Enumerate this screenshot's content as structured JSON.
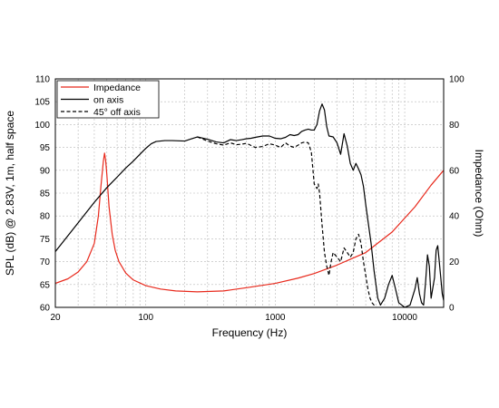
{
  "chart_data": {
    "type": "line",
    "x_scale": "log",
    "xlabel": "Frequency (Hz)",
    "ylabel_left": "SPL (dB) @ 2.83V, 1m, half space",
    "ylabel_right": "Impedance (Ohm)",
    "xlim": [
      20,
      20000
    ],
    "ylim_left": [
      60,
      110
    ],
    "ylim_right": [
      0,
      100
    ],
    "x_ticks": [
      20,
      100,
      1000,
      10000
    ],
    "x_tick_labels": [
      "20",
      "100",
      "1000",
      "10000"
    ],
    "y_left_ticks": [
      60,
      65,
      70,
      75,
      80,
      85,
      90,
      95,
      100,
      105,
      110
    ],
    "y_left_tick_labels": [
      "60",
      "65",
      "70",
      "75",
      "80",
      "85",
      "90",
      "95",
      "100",
      "105",
      "110"
    ],
    "y_right_ticks": [
      0,
      20,
      40,
      60,
      80,
      100
    ],
    "y_right_tick_labels": [
      "0",
      "20",
      "40",
      "60",
      "80",
      "100"
    ],
    "grid": true,
    "legend_position": "top-left",
    "series": [
      {
        "name": "Impedance",
        "axis": "right",
        "color": "#e8291c",
        "style": "solid",
        "x": [
          20,
          25,
          30,
          35,
          40,
          43,
          45,
          47,
          48,
          49,
          50,
          52,
          55,
          58,
          62,
          70,
          80,
          100,
          130,
          170,
          250,
          400,
          600,
          1000,
          1500,
          2000,
          3000,
          5000,
          8000,
          12000,
          16000,
          20000
        ],
        "y": [
          10.5,
          12.5,
          15.5,
          20,
          28,
          40,
          53,
          64,
          67.5,
          64,
          58,
          44,
          32,
          25,
          20,
          15,
          12,
          9.5,
          8,
          7.2,
          6.8,
          7.2,
          8.6,
          10.5,
          12.8,
          14.8,
          18.5,
          24,
          33,
          44,
          53.5,
          60
        ]
      },
      {
        "name": "on axis",
        "axis": "left",
        "color": "#000000",
        "style": "solid",
        "x": [
          20,
          30,
          40,
          50,
          60,
          70,
          80,
          90,
          100,
          110,
          120,
          140,
          160,
          200,
          220,
          250,
          300,
          350,
          400,
          450,
          500,
          550,
          600,
          650,
          700,
          800,
          900,
          1000,
          1100,
          1200,
          1300,
          1400,
          1500,
          1600,
          1700,
          1800,
          1900,
          2000,
          2100,
          2200,
          2300,
          2400,
          2500,
          2600,
          2800,
          3000,
          3200,
          3400,
          3600,
          3800,
          4000,
          4200,
          4400,
          4600,
          4800,
          5000,
          5200,
          5500,
          5800,
          6200,
          6500,
          7000,
          7500,
          8000,
          8500,
          9000,
          10000,
          11000,
          12000,
          12500,
          13000,
          13500,
          14000,
          14500,
          15000,
          15500,
          16000,
          17000,
          17500,
          18000,
          18500,
          19000,
          19500,
          20000
        ],
        "y": [
          72.2,
          78.5,
          83.0,
          86.2,
          88.5,
          90.5,
          92.0,
          93.5,
          94.8,
          95.8,
          96.3,
          96.5,
          96.5,
          96.4,
          96.8,
          97.3,
          96.8,
          96.2,
          96.0,
          96.7,
          96.5,
          96.7,
          96.9,
          97.0,
          97.2,
          97.5,
          97.5,
          97.0,
          96.9,
          97.2,
          97.8,
          97.6,
          97.8,
          98.5,
          98.8,
          99.0,
          98.8,
          98.8,
          100.0,
          103.0,
          104.5,
          103.2,
          99.5,
          97.5,
          97.3,
          96.0,
          93.5,
          98.0,
          95.3,
          91.5,
          90.0,
          91.5,
          90.3,
          89.0,
          86.5,
          82.5,
          79.0,
          74.0,
          68.0,
          62.0,
          60.5,
          62.0,
          65.0,
          67.0,
          64.0,
          61.0,
          60.0,
          60.5,
          64.0,
          66.5,
          63.0,
          61.0,
          60.5,
          65.5,
          71.5,
          69.0,
          62.0,
          66.5,
          72.5,
          73.5,
          70.0,
          66.5,
          63.0,
          61.5
        ]
      },
      {
        "name": "45° off axis",
        "axis": "left",
        "color": "#000000",
        "style": "dashed",
        "x": [
          250,
          300,
          350,
          400,
          450,
          500,
          550,
          600,
          700,
          800,
          900,
          1000,
          1100,
          1200,
          1300,
          1400,
          1500,
          1600,
          1700,
          1800,
          1900,
          2000,
          2100,
          2150,
          2200,
          2300,
          2400,
          2500,
          2600,
          2700,
          2800,
          3000,
          3200,
          3400,
          3600,
          3800,
          4000,
          4200,
          4400,
          4600,
          4800,
          5000,
          5200,
          5400,
          5600,
          5800,
          6000
        ],
        "y": [
          97.3,
          96.4,
          95.8,
          95.5,
          96.0,
          95.6,
          95.7,
          95.9,
          95.0,
          95.2,
          95.8,
          95.5,
          95.0,
          96.0,
          95.3,
          95.0,
          95.5,
          96.0,
          96.2,
          96.0,
          94.0,
          87.0,
          86.0,
          87.0,
          85.0,
          78.0,
          72.0,
          69.0,
          67.0,
          70.0,
          72.0,
          71.0,
          70.0,
          73.0,
          72.0,
          71.0,
          72.0,
          75.0,
          76.0,
          74.0,
          70.0,
          67.0,
          64.0,
          62.0,
          61.0,
          60.5,
          60.0
        ]
      }
    ]
  }
}
